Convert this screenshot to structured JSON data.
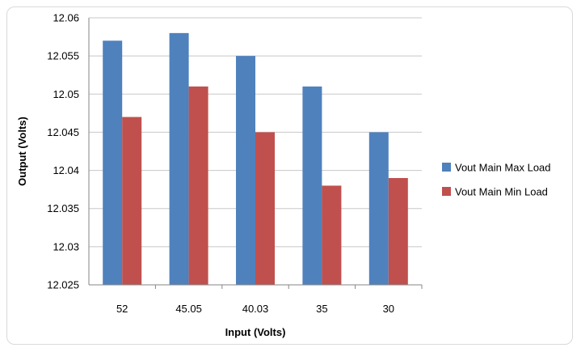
{
  "chart_data": {
    "type": "bar",
    "categories": [
      "52",
      "45.05",
      "40.03",
      "35",
      "30"
    ],
    "series": [
      {
        "name": "Vout Main Max Load",
        "color": "#4f81bd",
        "values": [
          12.057,
          12.058,
          12.055,
          12.051,
          12.045
        ]
      },
      {
        "name": "Vout Main Min Load",
        "color": "#c0504d",
        "values": [
          12.047,
          12.051,
          12.045,
          12.038,
          12.039
        ]
      }
    ],
    "xlabel": "Input (Volts)",
    "ylabel": "Output (Volts)",
    "ylim": [
      12.025,
      12.06
    ],
    "yticks": [
      "12.025",
      "12.03",
      "12.035",
      "12.04",
      "12.045",
      "12.05",
      "12.055",
      "12.06"
    ],
    "grid": true,
    "legend_position": "right"
  }
}
